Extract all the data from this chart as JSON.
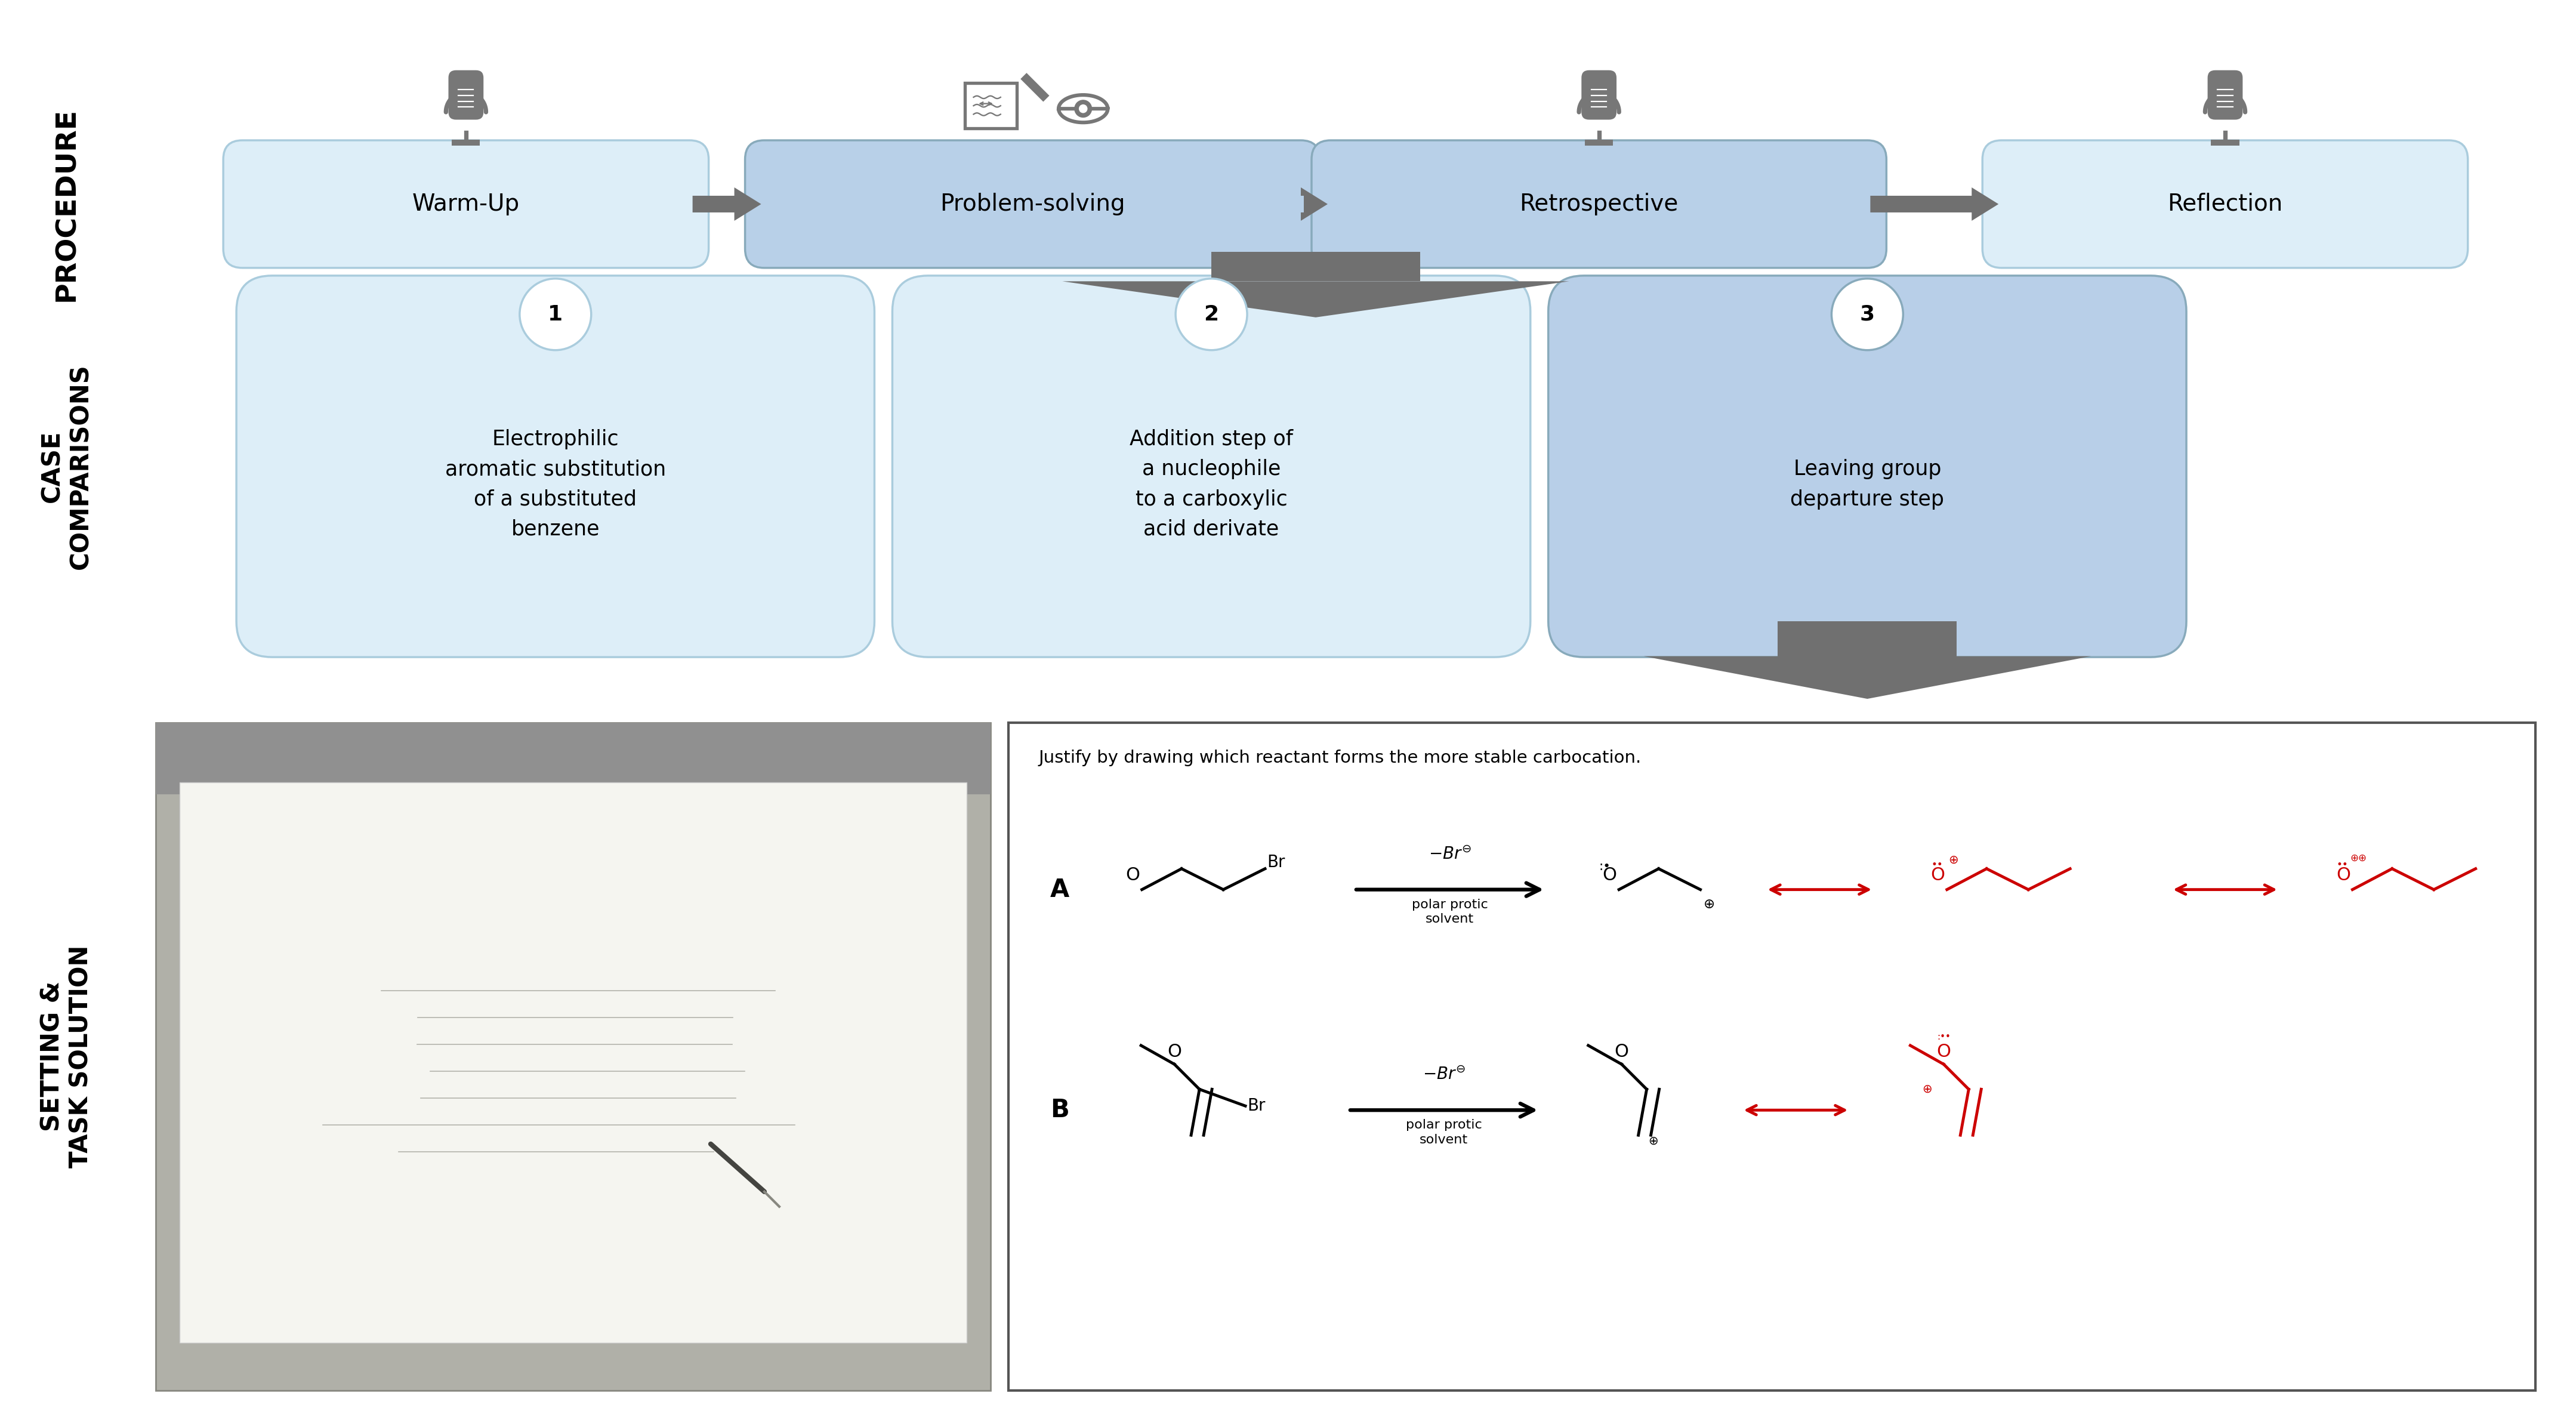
{
  "bg_color": "#ffffff",
  "procedure_label": "PROCEDURE",
  "case_comparisons_label": "CASE\nCOMPARISONS",
  "setting_label": "SETTING &\nTASK SOLUTION",
  "steps": [
    "Warm-Up",
    "Problem-solving",
    "Retrospective",
    "Reflection"
  ],
  "cases": [
    "Electrophilic\naromatic substitution\nof a substituted\nbenzene",
    "Addition step of\na nucleophile\nto a carboxylic\nacid derivate",
    "Leaving group\ndeparture step"
  ],
  "case_numbers": [
    "1",
    "2",
    "3"
  ],
  "mic_color": "#777777",
  "arrow_color": "#707070",
  "task_box_text": "Justify by drawing which reactant forms the more stable carbocation.",
  "label_A": "A",
  "label_B": "B",
  "red_color": "#cc0000",
  "black_color": "#111111",
  "step_box_light": "#ddeef8",
  "step_box_medium": "#b8d0e8",
  "case_box_light": "#ddeef8",
  "case_box_medium": "#b8cfe8",
  "border_color": "#aaccdd",
  "border_medium": "#88aabb"
}
